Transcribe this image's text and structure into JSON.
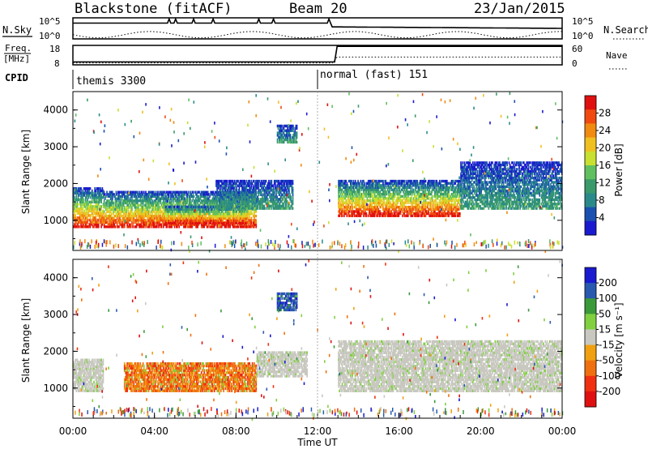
{
  "header": {
    "station": "Blackstone (fitACF)",
    "beam": "Beam 20",
    "date": "23/Jan/2015"
  },
  "top_panels": {
    "nsky_label": "N.Sky",
    "nsky_ticks": [
      "10^5",
      "10^0"
    ],
    "nsearch_label": "N.Search",
    "nsearch_ticks": [
      "10^5",
      "10^0"
    ],
    "freq_label": "Freq.",
    "freq_unit": "[MHz]",
    "freq_ticks": [
      "18",
      "8"
    ],
    "nave_label": "Nave",
    "nave_ticks": [
      "60",
      "0"
    ],
    "cpid_label": "CPID",
    "cpid_segments": [
      {
        "label": "themis 3300",
        "start_hour": 0
      },
      {
        "label": "normal (fast) 151",
        "start_hour": 12
      }
    ]
  },
  "chart_data": [
    {
      "type": "heatmap",
      "name": "power-panel",
      "ylabel": "Slant Range [km]",
      "y_ticks": [
        1000,
        2000,
        3000,
        4000
      ],
      "ylim": [
        180,
        4500
      ],
      "xlim": [
        0,
        24
      ],
      "colorbar": {
        "label": "Power [dB]",
        "ticks": [
          "28",
          "24",
          "20",
          "16",
          "12",
          "8",
          "4"
        ],
        "colors": [
          "#e01010",
          "#f04a10",
          "#f08a10",
          "#f0c020",
          "#c8e030",
          "#60c060",
          "#3a9a6a",
          "#2a8a8a",
          "#1a50b0",
          "#1a1ad0"
        ]
      },
      "bands": [
        {
          "x0": 0.0,
          "x1": 1.5,
          "y0": 800,
          "y1": 1900,
          "level": "high"
        },
        {
          "x0": 1.5,
          "x1": 9.0,
          "y0": 800,
          "y1": 1800,
          "level": "high"
        },
        {
          "x0": 4.5,
          "x1": 8.5,
          "y0": 900,
          "y1": 1400,
          "level": "high"
        },
        {
          "x0": 7.0,
          "x1": 10.8,
          "y0": 1300,
          "y1": 2100,
          "level": "mid"
        },
        {
          "x0": 13.0,
          "x1": 19.0,
          "y0": 1100,
          "y1": 2100,
          "level": "high"
        },
        {
          "x0": 19.0,
          "x1": 24.0,
          "y0": 1300,
          "y1": 2600,
          "level": "mid"
        },
        {
          "x0": 10.0,
          "x1": 11.0,
          "y0": 3100,
          "y1": 3600,
          "level": "mid"
        }
      ]
    },
    {
      "type": "heatmap",
      "name": "velocity-panel",
      "ylabel": "Slant Range [km]",
      "y_ticks": [
        1000,
        2000,
        3000,
        4000
      ],
      "ylim": [
        180,
        4500
      ],
      "xlim": [
        0,
        24
      ],
      "x_ticks": [
        "00:00",
        "04:00",
        "08:00",
        "12:00",
        "16:00",
        "20:00",
        "00:00"
      ],
      "xlabel": "Time UT",
      "colorbar": {
        "label": "Velocity [m s⁻¹]",
        "ticks": [
          "200",
          "100",
          "50",
          "15",
          "-15",
          "-50",
          "-100",
          "-200"
        ],
        "colors": [
          "#1a1ad0",
          "#2a5ab0",
          "#3a9a3a",
          "#80d040",
          "#c8c8c0",
          "#f0a010",
          "#f07010",
          "#f03010",
          "#e01010"
        ]
      },
      "bands": [
        {
          "x0": 0.0,
          "x1": 1.5,
          "y0": 900,
          "y1": 1800,
          "level": "gray"
        },
        {
          "x0": 2.5,
          "x1": 9.0,
          "y0": 900,
          "y1": 1700,
          "level": "neg"
        },
        {
          "x0": 9.0,
          "x1": 11.5,
          "y0": 1300,
          "y1": 2000,
          "level": "gray"
        },
        {
          "x0": 13.0,
          "x1": 24.0,
          "y0": 900,
          "y1": 2300,
          "level": "gray"
        },
        {
          "x0": 10.0,
          "x1": 11.0,
          "y0": 3100,
          "y1": 3600,
          "level": "pos"
        }
      ]
    }
  ]
}
